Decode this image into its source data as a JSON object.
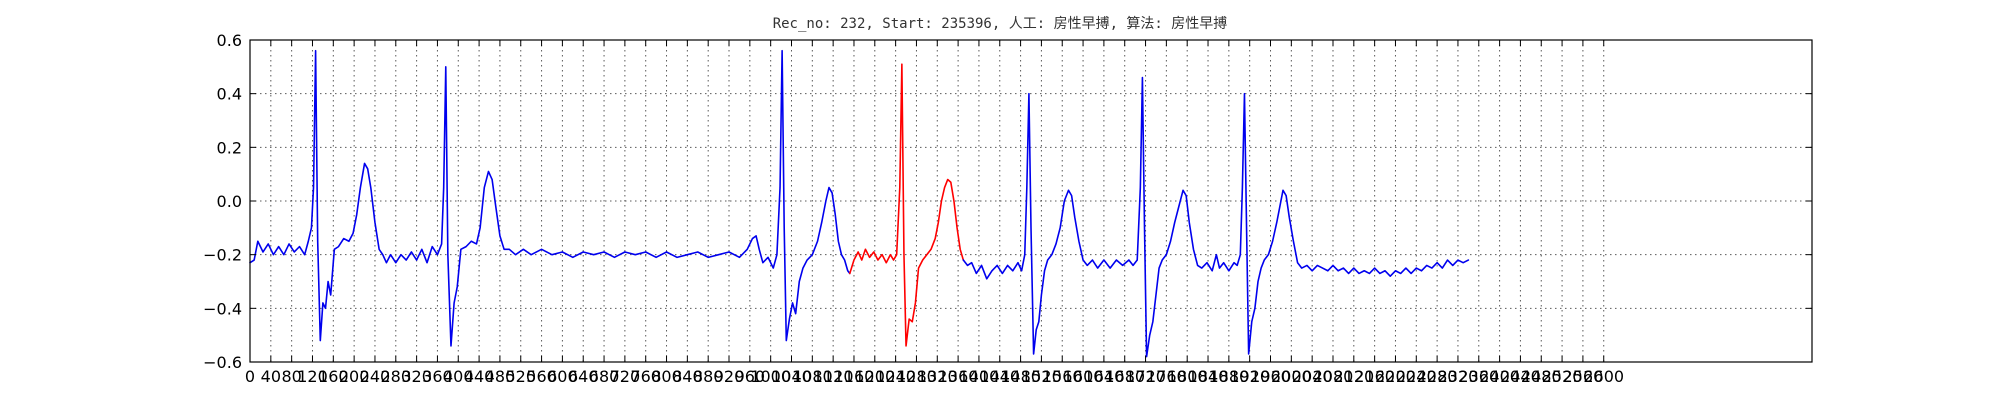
{
  "chart_data": {
    "type": "line",
    "title": "Rec_no: 232, Start: 235396, 人工: 房性早搏, 算法: 房性早搏",
    "xlabel": "",
    "ylabel": "",
    "xlim": [
      0,
      3000
    ],
    "ylim": [
      -0.6,
      0.6
    ],
    "grid": true,
    "colors": {
      "normal": "#0000ee",
      "highlight": "#ff0000"
    },
    "yticks": [
      -0.6,
      -0.4,
      -0.2,
      0.0,
      0.2,
      0.4,
      0.6
    ],
    "ytick_labels": [
      "−0.6",
      "−0.4",
      "−0.2",
      "0.0",
      "0.2",
      "0.4",
      "0.6"
    ],
    "xticks": [
      0,
      40,
      80,
      120,
      160,
      200,
      240,
      280,
      320,
      360,
      400,
      440,
      480,
      520,
      560,
      600,
      640,
      680,
      720,
      760,
      800,
      840,
      880,
      920,
      960,
      1000,
      1040,
      1080,
      1120,
      1160,
      1200,
      1240,
      1280,
      1320,
      1360,
      1400,
      1440,
      1480,
      1520,
      1560,
      1600,
      1640,
      1680,
      1720,
      1760,
      1800,
      1840,
      1880,
      1920,
      1960,
      2000,
      2040,
      2080,
      2120,
      2160,
      2200,
      2240,
      2280,
      2320,
      2360,
      2400,
      2440,
      2480,
      2520,
      2560,
      2600
    ],
    "xtick_labels": [
      "0",
      "40",
      "80",
      "120",
      "160",
      "200",
      "240",
      "280",
      "320",
      "360",
      "400",
      "440",
      "480",
      "520",
      "560",
      "600",
      "640",
      "680",
      "720",
      "760",
      "800",
      "840",
      "880",
      "920",
      "960",
      "1000",
      "1040",
      "1080",
      "1120",
      "1160",
      "1200",
      "1240",
      "1280",
      "1320",
      "1360",
      "1400",
      "1440",
      "1480",
      "1520",
      "1560",
      "1600",
      "1640",
      "1680",
      "1720",
      "1760",
      "1800",
      "1840",
      "1880",
      "1920",
      "1960",
      "2000",
      "2040",
      "2080",
      "2120",
      "2160",
      "2200",
      "2240",
      "2280",
      "2320",
      "2360",
      "2400",
      "2440",
      "2480",
      "2520",
      "2560",
      "2600"
    ],
    "series": [
      {
        "color": "#0000ee",
        "points": [
          [
            0,
            -0.23
          ],
          [
            8,
            -0.22
          ],
          [
            15,
            -0.15
          ],
          [
            25,
            -0.19
          ],
          [
            35,
            -0.16
          ],
          [
            45,
            -0.2
          ],
          [
            55,
            -0.17
          ],
          [
            65,
            -0.2
          ],
          [
            75,
            -0.16
          ],
          [
            85,
            -0.19
          ],
          [
            95,
            -0.17
          ],
          [
            105,
            -0.2
          ],
          [
            112,
            -0.15
          ],
          [
            118,
            -0.1
          ],
          [
            122,
            0.05
          ],
          [
            126,
            0.56
          ],
          [
            130,
            -0.15
          ],
          [
            135,
            -0.52
          ],
          [
            140,
            -0.38
          ],
          [
            145,
            -0.4
          ],
          [
            150,
            -0.3
          ],
          [
            155,
            -0.35
          ],
          [
            162,
            -0.18
          ],
          [
            170,
            -0.17
          ],
          [
            180,
            -0.14
          ],
          [
            190,
            -0.15
          ],
          [
            198,
            -0.12
          ],
          [
            205,
            -0.05
          ],
          [
            212,
            0.05
          ],
          [
            220,
            0.14
          ],
          [
            226,
            0.12
          ],
          [
            232,
            0.05
          ],
          [
            240,
            -0.08
          ],
          [
            248,
            -0.18
          ],
          [
            255,
            -0.2
          ],
          [
            262,
            -0.23
          ],
          [
            270,
            -0.2
          ],
          [
            280,
            -0.23
          ],
          [
            290,
            -0.2
          ],
          [
            300,
            -0.22
          ],
          [
            310,
            -0.19
          ],
          [
            320,
            -0.22
          ],
          [
            330,
            -0.18
          ],
          [
            340,
            -0.23
          ],
          [
            350,
            -0.17
          ],
          [
            360,
            -0.2
          ],
          [
            368,
            -0.16
          ],
          [
            372,
            0.05
          ],
          [
            376,
            0.5
          ],
          [
            380,
            -0.2
          ],
          [
            386,
            -0.54
          ],
          [
            392,
            -0.38
          ],
          [
            398,
            -0.32
          ],
          [
            405,
            -0.18
          ],
          [
            415,
            -0.17
          ],
          [
            425,
            -0.15
          ],
          [
            435,
            -0.16
          ],
          [
            442,
            -0.1
          ],
          [
            450,
            0.05
          ],
          [
            458,
            0.11
          ],
          [
            465,
            0.08
          ],
          [
            472,
            -0.02
          ],
          [
            480,
            -0.13
          ],
          [
            488,
            -0.18
          ],
          [
            498,
            -0.18
          ],
          [
            510,
            -0.2
          ],
          [
            525,
            -0.18
          ],
          [
            540,
            -0.2
          ],
          [
            560,
            -0.18
          ],
          [
            580,
            -0.2
          ],
          [
            600,
            -0.19
          ],
          [
            620,
            -0.21
          ],
          [
            640,
            -0.19
          ],
          [
            660,
            -0.2
          ],
          [
            680,
            -0.19
          ],
          [
            700,
            -0.21
          ],
          [
            720,
            -0.19
          ],
          [
            740,
            -0.2
          ],
          [
            760,
            -0.19
          ],
          [
            780,
            -0.21
          ],
          [
            800,
            -0.19
          ],
          [
            820,
            -0.21
          ],
          [
            840,
            -0.2
          ],
          [
            860,
            -0.19
          ],
          [
            880,
            -0.21
          ],
          [
            900,
            -0.2
          ],
          [
            920,
            -0.19
          ],
          [
            940,
            -0.21
          ],
          [
            955,
            -0.18
          ],
          [
            965,
            -0.14
          ],
          [
            972,
            -0.13
          ],
          [
            978,
            -0.18
          ],
          [
            985,
            -0.23
          ],
          [
            995,
            -0.21
          ],
          [
            1005,
            -0.25
          ],
          [
            1012,
            -0.2
          ],
          [
            1018,
            0.05
          ],
          [
            1022,
            0.56
          ],
          [
            1026,
            -0.1
          ],
          [
            1030,
            -0.52
          ],
          [
            1036,
            -0.44
          ],
          [
            1042,
            -0.38
          ],
          [
            1048,
            -0.42
          ],
          [
            1055,
            -0.3
          ],
          [
            1062,
            -0.25
          ],
          [
            1070,
            -0.22
          ],
          [
            1080,
            -0.2
          ],
          [
            1090,
            -0.15
          ],
          [
            1098,
            -0.08
          ],
          [
            1106,
            0.0
          ],
          [
            1112,
            0.05
          ],
          [
            1118,
            0.03
          ],
          [
            1124,
            -0.05
          ],
          [
            1130,
            -0.15
          ],
          [
            1136,
            -0.2
          ],
          [
            1142,
            -0.22
          ],
          [
            1148,
            -0.26
          ],
          [
            1152,
            -0.27
          ]
        ]
      },
      {
        "color": "#ff0000",
        "points": [
          [
            1152,
            -0.27
          ],
          [
            1160,
            -0.22
          ],
          [
            1168,
            -0.19
          ],
          [
            1175,
            -0.22
          ],
          [
            1182,
            -0.18
          ],
          [
            1190,
            -0.21
          ],
          [
            1198,
            -0.19
          ],
          [
            1206,
            -0.22
          ],
          [
            1214,
            -0.2
          ],
          [
            1222,
            -0.23
          ],
          [
            1230,
            -0.2
          ],
          [
            1236,
            -0.22
          ],
          [
            1242,
            -0.2
          ],
          [
            1248,
            0.05
          ],
          [
            1252,
            0.51
          ],
          [
            1256,
            -0.2
          ],
          [
            1260,
            -0.54
          ],
          [
            1266,
            -0.44
          ],
          [
            1272,
            -0.45
          ],
          [
            1278,
            -0.38
          ],
          [
            1284,
            -0.25
          ],
          [
            1292,
            -0.22
          ],
          [
            1300,
            -0.2
          ],
          [
            1308,
            -0.18
          ],
          [
            1316,
            -0.14
          ],
          [
            1322,
            -0.08
          ],
          [
            1328,
            0.0
          ],
          [
            1334,
            0.05
          ],
          [
            1340,
            0.08
          ],
          [
            1346,
            0.07
          ],
          [
            1352,
            0.0
          ],
          [
            1358,
            -0.1
          ],
          [
            1364,
            -0.18
          ],
          [
            1370,
            -0.22
          ]
        ]
      },
      {
        "color": "#0000ee",
        "points": [
          [
            1370,
            -0.22
          ],
          [
            1378,
            -0.24
          ],
          [
            1386,
            -0.23
          ],
          [
            1395,
            -0.27
          ],
          [
            1405,
            -0.24
          ],
          [
            1415,
            -0.29
          ],
          [
            1425,
            -0.26
          ],
          [
            1435,
            -0.24
          ],
          [
            1445,
            -0.27
          ],
          [
            1455,
            -0.24
          ],
          [
            1465,
            -0.26
          ],
          [
            1475,
            -0.23
          ],
          [
            1482,
            -0.26
          ],
          [
            1488,
            -0.2
          ],
          [
            1492,
            0.05
          ],
          [
            1496,
            0.4
          ],
          [
            1500,
            -0.1
          ],
          [
            1505,
            -0.57
          ],
          [
            1510,
            -0.48
          ],
          [
            1515,
            -0.45
          ],
          [
            1520,
            -0.35
          ],
          [
            1526,
            -0.26
          ],
          [
            1532,
            -0.22
          ],
          [
            1540,
            -0.2
          ],
          [
            1548,
            -0.16
          ],
          [
            1556,
            -0.1
          ],
          [
            1564,
            0.0
          ],
          [
            1572,
            0.04
          ],
          [
            1578,
            0.02
          ],
          [
            1584,
            -0.06
          ],
          [
            1592,
            -0.15
          ],
          [
            1600,
            -0.22
          ],
          [
            1608,
            -0.24
          ],
          [
            1618,
            -0.22
          ],
          [
            1628,
            -0.25
          ],
          [
            1640,
            -0.22
          ],
          [
            1652,
            -0.25
          ],
          [
            1664,
            -0.22
          ],
          [
            1676,
            -0.24
          ],
          [
            1688,
            -0.22
          ],
          [
            1696,
            -0.24
          ],
          [
            1704,
            -0.22
          ],
          [
            1710,
            0.05
          ],
          [
            1714,
            0.46
          ],
          [
            1718,
            -0.1
          ],
          [
            1722,
            -0.58
          ],
          [
            1728,
            -0.5
          ],
          [
            1734,
            -0.45
          ],
          [
            1740,
            -0.35
          ],
          [
            1746,
            -0.25
          ],
          [
            1752,
            -0.22
          ],
          [
            1760,
            -0.2
          ],
          [
            1768,
            -0.15
          ],
          [
            1776,
            -0.08
          ],
          [
            1784,
            -0.02
          ],
          [
            1792,
            0.04
          ],
          [
            1798,
            0.02
          ],
          [
            1804,
            -0.08
          ],
          [
            1812,
            -0.18
          ],
          [
            1820,
            -0.24
          ],
          [
            1828,
            -0.25
          ],
          [
            1838,
            -0.23
          ],
          [
            1848,
            -0.26
          ],
          [
            1856,
            -0.2
          ],
          [
            1862,
            -0.25
          ],
          [
            1870,
            -0.23
          ],
          [
            1880,
            -0.26
          ],
          [
            1890,
            -0.23
          ],
          [
            1896,
            -0.24
          ],
          [
            1902,
            -0.2
          ],
          [
            1906,
            0.05
          ],
          [
            1910,
            0.4
          ],
          [
            1914,
            -0.1
          ],
          [
            1918,
            -0.57
          ],
          [
            1924,
            -0.45
          ],
          [
            1930,
            -0.4
          ],
          [
            1936,
            -0.3
          ],
          [
            1942,
            -0.25
          ],
          [
            1948,
            -0.22
          ],
          [
            1956,
            -0.2
          ],
          [
            1964,
            -0.15
          ],
          [
            1972,
            -0.08
          ],
          [
            1978,
            -0.02
          ],
          [
            1984,
            0.04
          ],
          [
            1990,
            0.02
          ],
          [
            1996,
            -0.06
          ],
          [
            2004,
            -0.15
          ],
          [
            2012,
            -0.23
          ],
          [
            2020,
            -0.25
          ],
          [
            2030,
            -0.24
          ],
          [
            2040,
            -0.26
          ],
          [
            2050,
            -0.24
          ],
          [
            2060,
            -0.25
          ],
          [
            2070,
            -0.26
          ],
          [
            2080,
            -0.24
          ],
          [
            2090,
            -0.26
          ],
          [
            2100,
            -0.25
          ],
          [
            2110,
            -0.27
          ],
          [
            2120,
            -0.25
          ],
          [
            2130,
            -0.27
          ],
          [
            2140,
            -0.26
          ],
          [
            2150,
            -0.27
          ],
          [
            2160,
            -0.25
          ],
          [
            2170,
            -0.27
          ],
          [
            2180,
            -0.26
          ],
          [
            2190,
            -0.28
          ],
          [
            2200,
            -0.26
          ],
          [
            2210,
            -0.27
          ],
          [
            2220,
            -0.25
          ],
          [
            2230,
            -0.27
          ],
          [
            2240,
            -0.25
          ],
          [
            2250,
            -0.26
          ],
          [
            2260,
            -0.24
          ],
          [
            2270,
            -0.25
          ],
          [
            2280,
            -0.23
          ],
          [
            2290,
            -0.25
          ],
          [
            2300,
            -0.22
          ],
          [
            2310,
            -0.24
          ],
          [
            2320,
            -0.22
          ],
          [
            2330,
            -0.23
          ],
          [
            2340,
            -0.22
          ]
        ]
      }
    ]
  }
}
